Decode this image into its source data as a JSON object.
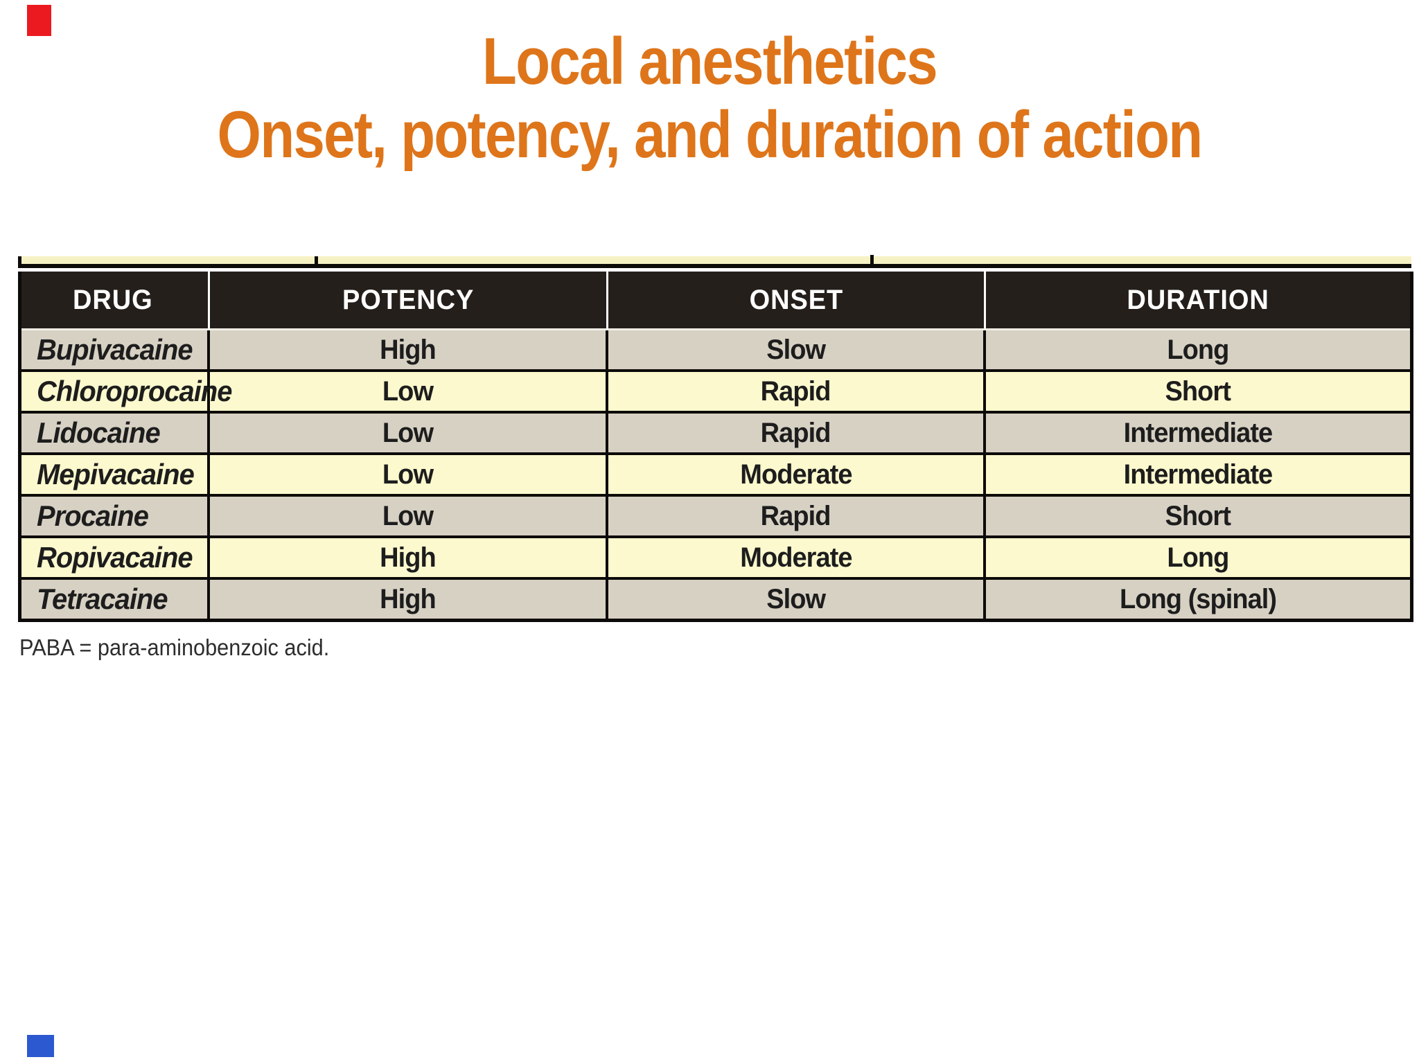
{
  "slide": {
    "title_line1": "Local anesthetics",
    "title_line2": "Onset, potency, and duration of action",
    "footnote": "PABA = para-aminobenzoic acid."
  },
  "table": {
    "columns": [
      "DRUG",
      "POTENCY",
      "ONSET",
      "DURATION"
    ],
    "rows": [
      {
        "drug": "Bupivacaine",
        "potency": "High",
        "onset": "Slow",
        "duration": "Long",
        "tone": "beige"
      },
      {
        "drug": "Chloroprocaine",
        "potency": "Low",
        "onset": "Rapid",
        "duration": "Short",
        "tone": "yellow"
      },
      {
        "drug": "Lidocaine",
        "potency": "Low",
        "onset": "Rapid",
        "duration": "Intermediate",
        "tone": "beige"
      },
      {
        "drug": "Mepivacaine",
        "potency": "Low",
        "onset": "Moderate",
        "duration": "Intermediate",
        "tone": "yellow"
      },
      {
        "drug": "Procaine",
        "potency": "Low",
        "onset": "Rapid",
        "duration": "Short",
        "tone": "beige"
      },
      {
        "drug": "Ropivacaine",
        "potency": "High",
        "onset": "Moderate",
        "duration": "Long",
        "tone": "yellow"
      },
      {
        "drug": "Tetracaine",
        "potency": "High",
        "onset": "Slow",
        "duration": "Long (spinal)",
        "tone": "beige"
      }
    ]
  },
  "colors": {
    "title_orange": "#de751a",
    "header_bg": "#241f1b",
    "header_text": "#ffffff",
    "row_beige": "#d7d1c4",
    "row_yellow": "#fcf9ce",
    "strip_yellow": "#f6f2c4",
    "border_black": "#0d0b09",
    "cell_text": "#1d1d1d",
    "marker_red": "#ea1a20",
    "marker_blue": "#2c58d0"
  }
}
